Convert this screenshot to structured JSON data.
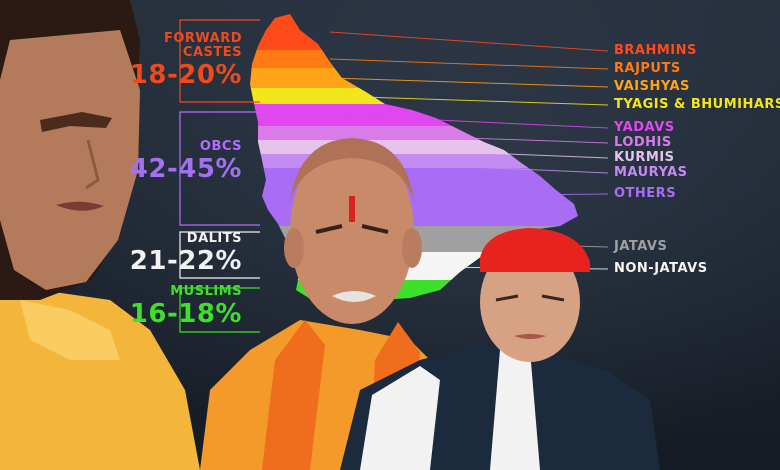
{
  "groups": [
    {
      "key": "forward",
      "name_lines": [
        "FORWARD",
        "CASTES"
      ],
      "pct": "18-20%",
      "color": "#f04a1c",
      "pct_color": "#f04a1c"
    },
    {
      "key": "obcs",
      "name_lines": [
        "OBCS"
      ],
      "pct": "42-45%",
      "color": "#b36cff",
      "pct_color": "#a270f0"
    },
    {
      "key": "dalits",
      "name_lines": [
        "DALITS"
      ],
      "pct": "21-22%",
      "color": "#f2f2f2",
      "pct_color": "#f2f2f2"
    },
    {
      "key": "muslims",
      "name_lines": [
        "MUSLIMS"
      ],
      "pct": "16-18%",
      "color": "#3ee02a",
      "pct_color": "#3ee02a"
    }
  ],
  "castes": [
    {
      "name": "BRAHMINS",
      "color": "#ff4a1a"
    },
    {
      "name": "RAJPUTS",
      "color": "#ff7a14"
    },
    {
      "name": "VAISHYAS",
      "color": "#ffa318"
    },
    {
      "name": "TYAGIS & BHUMIHARS",
      "color": "#f3e61a"
    },
    {
      "name": "YADAVS",
      "color": "#e047ee"
    },
    {
      "name": "LODHIS",
      "color": "#d97be8"
    },
    {
      "name": "KURMIS",
      "color": "#e6c3ec"
    },
    {
      "name": "MAURYAS",
      "color": "#c48cf2"
    },
    {
      "name": "OTHERS",
      "color": "#a96cf5"
    },
    {
      "name": "JATAVS",
      "color": "#a0a0a0"
    },
    {
      "name": "NON-JATAVS",
      "color": "#f5f5f5"
    }
  ],
  "map_colors": {
    "muslims": "#3ee02a",
    "connector": "#d0d0d0"
  }
}
